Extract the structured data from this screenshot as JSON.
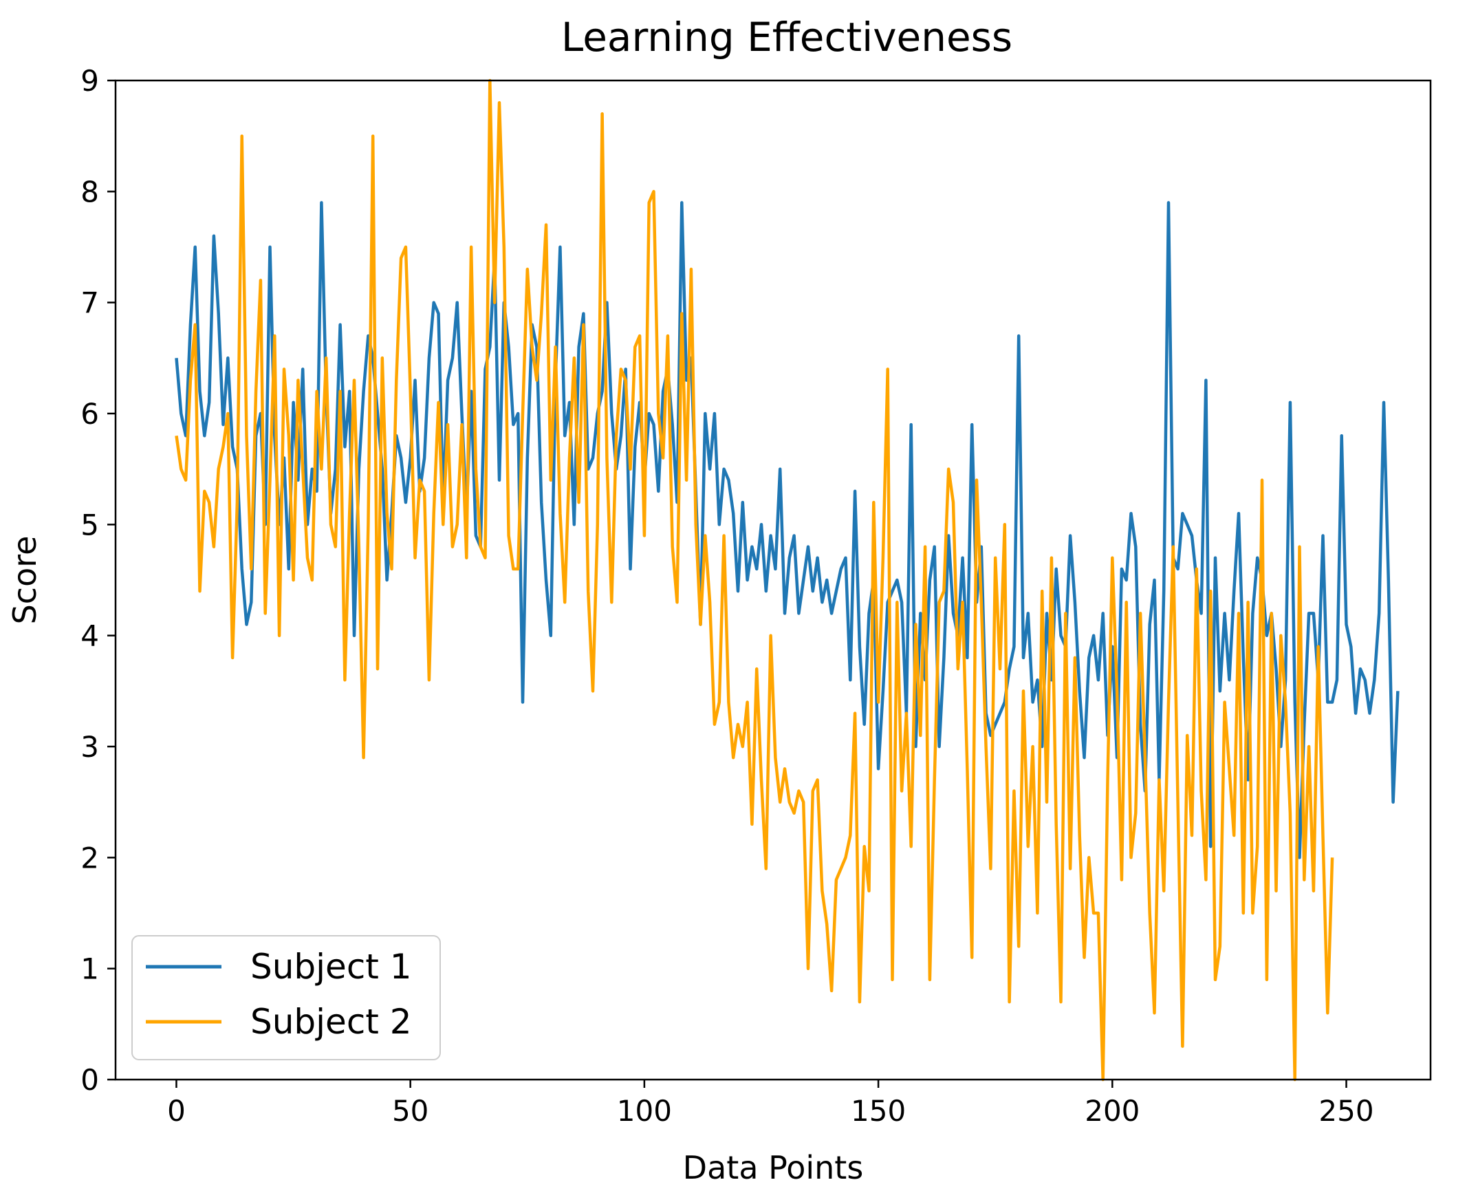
{
  "chart_data": {
    "type": "line",
    "title": "Learning Effectiveness",
    "xlabel": "Data Points",
    "ylabel": "Score",
    "xlim": [
      -13,
      268
    ],
    "ylim": [
      0,
      9
    ],
    "x_ticks": [
      0,
      50,
      100,
      150,
      200,
      250
    ],
    "y_ticks": [
      0,
      1,
      2,
      3,
      4,
      5,
      6,
      7,
      8,
      9
    ],
    "grid": false,
    "legend_position": "lower-left",
    "series": [
      {
        "name": "Subject 1",
        "color": "#1f77b4",
        "values": [
          6.5,
          6.0,
          5.8,
          6.8,
          7.5,
          6.2,
          5.8,
          6.1,
          7.6,
          6.9,
          5.9,
          6.5,
          5.7,
          5.5,
          4.6,
          4.1,
          4.3,
          5.8,
          6.0,
          5.0,
          7.5,
          5.8,
          5.0,
          5.6,
          4.6,
          6.1,
          5.4,
          6.4,
          5.0,
          5.5,
          5.3,
          7.9,
          6.2,
          5.1,
          5.5,
          6.8,
          5.7,
          6.2,
          4.0,
          5.5,
          6.2,
          6.7,
          6.5,
          6.0,
          5.5,
          4.5,
          5.1,
          5.8,
          5.6,
          5.2,
          5.6,
          6.3,
          5.3,
          5.6,
          6.5,
          7.0,
          6.9,
          5.2,
          6.3,
          6.5,
          7.0,
          6.0,
          5.1,
          6.2,
          4.9,
          4.8,
          6.4,
          6.6,
          7.4,
          5.4,
          7.0,
          6.6,
          5.9,
          6.0,
          3.4,
          5.6,
          6.8,
          6.6,
          5.2,
          4.5,
          4.0,
          6.3,
          7.5,
          5.8,
          6.1,
          5.0,
          6.6,
          6.9,
          5.5,
          5.6,
          6.0,
          6.2,
          7.0,
          6.0,
          5.5,
          5.8,
          6.4,
          4.6,
          5.7,
          6.1,
          5.4,
          6.0,
          5.9,
          5.3,
          6.2,
          6.4,
          5.9,
          5.2,
          7.9,
          6.3,
          6.5,
          5.3,
          4.1,
          6.0,
          5.5,
          6.0,
          5.0,
          5.5,
          5.4,
          5.1,
          4.4,
          5.2,
          4.5,
          4.8,
          4.6,
          5.0,
          4.4,
          4.9,
          4.6,
          5.5,
          4.2,
          4.7,
          4.9,
          4.2,
          4.5,
          4.8,
          4.4,
          4.7,
          4.3,
          4.5,
          4.2,
          4.4,
          4.6,
          4.7,
          3.6,
          5.3,
          3.9,
          3.2,
          4.2,
          4.5,
          2.8,
          3.5,
          4.3,
          4.4,
          4.5,
          4.3,
          3.3,
          5.9,
          3.0,
          4.2,
          3.6,
          4.5,
          4.8,
          3.0,
          3.8,
          4.9,
          4.2,
          4.0,
          4.7,
          3.8,
          5.9,
          4.3,
          4.8,
          3.3,
          3.1,
          3.2,
          3.3,
          3.4,
          3.7,
          3.9,
          6.7,
          3.8,
          4.2,
          3.4,
          3.6,
          3.0,
          4.2,
          3.6,
          4.6,
          4.0,
          3.9,
          4.9,
          4.3,
          3.5,
          2.9,
          3.8,
          4.0,
          3.6,
          4.2,
          3.1,
          3.9,
          2.9,
          4.6,
          4.5,
          5.1,
          4.8,
          3.2,
          2.6,
          4.1,
          4.5,
          2.7,
          4.4,
          7.9,
          4.7,
          4.6,
          5.1,
          5.0,
          4.9,
          4.5,
          4.2,
          6.3,
          2.1,
          4.7,
          3.5,
          4.2,
          3.6,
          4.4,
          5.1,
          3.8,
          2.7,
          4.2,
          4.7,
          4.5,
          4.0,
          4.2,
          3.7,
          3.0,
          3.6,
          6.1,
          3.4,
          2.0,
          3.2,
          4.2,
          4.2,
          3.6,
          4.9,
          3.4,
          3.4,
          3.6,
          5.8,
          4.1,
          3.9,
          3.3,
          3.7,
          3.6,
          3.3,
          3.6,
          4.2,
          6.1,
          4.5,
          2.5,
          3.5
        ]
      },
      {
        "name": "Subject 2",
        "color": "#ffa500",
        "values": [
          5.8,
          5.5,
          5.4,
          6.3,
          6.8,
          4.4,
          5.3,
          5.2,
          4.8,
          5.5,
          5.7,
          6.0,
          3.8,
          5.2,
          8.5,
          5.8,
          4.6,
          6.2,
          7.2,
          4.2,
          5.4,
          6.7,
          4.0,
          6.4,
          5.8,
          4.5,
          6.3,
          5.5,
          4.7,
          4.5,
          6.2,
          5.5,
          6.5,
          5.0,
          4.8,
          6.2,
          3.6,
          5.1,
          6.3,
          4.8,
          2.9,
          5.0,
          8.5,
          3.7,
          6.5,
          5.1,
          4.6,
          6.3,
          7.4,
          7.5,
          6.2,
          4.7,
          5.4,
          5.3,
          3.6,
          5.1,
          6.1,
          5.0,
          5.9,
          4.8,
          5.0,
          5.9,
          4.7,
          7.5,
          5.5,
          4.8,
          4.7,
          9.0,
          7.0,
          8.8,
          7.5,
          4.9,
          4.6,
          4.6,
          6.0,
          7.3,
          6.6,
          6.3,
          6.9,
          7.7,
          5.4,
          6.6,
          5.1,
          4.3,
          5.6,
          6.5,
          5.2,
          6.8,
          4.4,
          3.5,
          5.0,
          8.7,
          5.6,
          4.3,
          5.8,
          6.4,
          6.3,
          5.5,
          6.6,
          6.7,
          4.9,
          7.9,
          8.0,
          6.0,
          5.6,
          6.7,
          4.8,
          4.3,
          6.9,
          5.4,
          7.3,
          5.0,
          4.1,
          4.9,
          4.3,
          3.2,
          3.4,
          4.9,
          3.4,
          2.9,
          3.2,
          3.0,
          3.4,
          2.3,
          3.7,
          2.7,
          1.9,
          4.0,
          2.9,
          2.5,
          2.8,
          2.5,
          2.4,
          2.6,
          2.5,
          1.0,
          2.6,
          2.7,
          1.7,
          1.4,
          0.8,
          1.8,
          1.9,
          2.0,
          2.2,
          3.3,
          0.7,
          2.1,
          1.7,
          5.2,
          3.4,
          4.7,
          6.4,
          0.9,
          4.3,
          2.6,
          3.3,
          2.1,
          4.1,
          3.1,
          4.8,
          0.9,
          2.7,
          4.3,
          4.4,
          5.5,
          5.2,
          3.7,
          4.3,
          2.8,
          1.1,
          5.4,
          4.3,
          3.0,
          1.9,
          4.7,
          3.7,
          5.0,
          0.7,
          2.6,
          1.2,
          3.5,
          2.1,
          3.0,
          1.5,
          4.4,
          2.5,
          4.7,
          2.3,
          0.7,
          4.2,
          1.9,
          3.8,
          2.2,
          1.1,
          2.0,
          1.5,
          1.5,
          0.0,
          2.7,
          4.7,
          3.5,
          1.8,
          4.3,
          2.0,
          2.4,
          4.2,
          2.9,
          1.5,
          0.6,
          2.7,
          1.7,
          3.4,
          4.8,
          2.5,
          0.3,
          3.1,
          2.2,
          4.6,
          2.6,
          1.8,
          4.4,
          0.9,
          1.2,
          3.4,
          2.8,
          2.2,
          4.2,
          1.5,
          4.3,
          1.5,
          2.1,
          5.4,
          0.9,
          4.2,
          1.7,
          4.0,
          3.4,
          2.4,
          0.0,
          4.8,
          1.8,
          3.0,
          1.7,
          3.9,
          2.2,
          0.6,
          2.0
        ]
      }
    ]
  }
}
